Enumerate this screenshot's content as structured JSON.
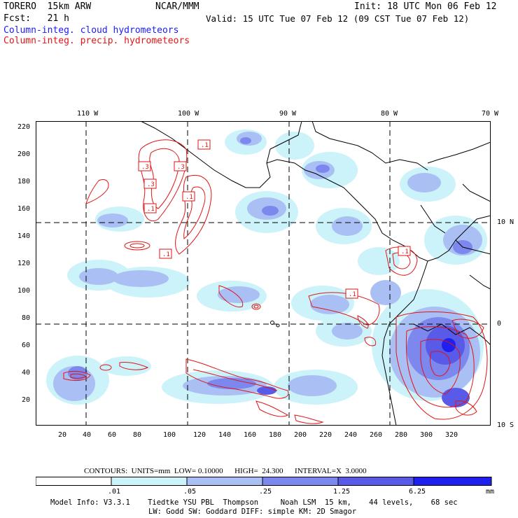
{
  "header": {
    "model": "TORERO  15km ARW",
    "center": "NCAR/MMM",
    "init": "Init: 18 UTC Mon 06 Feb 12",
    "fcst": "Fcst:   21 h",
    "valid": "Valid: 15 UTC Tue 07 Feb 12 (09 CST Tue 07 Feb 12)",
    "field_cloud": "Column-integ. cloud hydrometeors",
    "field_precip": "Column-integ. precip. hydrometeors"
  },
  "colors": {
    "cloud_label": "#1a1aff",
    "precip_label": "#e01515",
    "contour": "#e01515",
    "shade_1": "#ccf2fa",
    "shade_2": "#aac0f5",
    "shade_3": "#7c88ee",
    "shade_4": "#5a5ae8",
    "shade_5": "#2020ee"
  },
  "map": {
    "lon_labels": [
      "110 W",
      "100 W",
      "90 W",
      "80 W",
      "70 W"
    ],
    "lat_labels": [
      "10 N",
      "0",
      "10 S"
    ],
    "y_ticks": [
      "220",
      "200",
      "180",
      "160",
      "140",
      "120",
      "100",
      "80",
      "60",
      "40",
      "20"
    ],
    "x_ticks": [
      "20",
      "40",
      "60",
      "80",
      "100",
      "120",
      "140",
      "160",
      "180",
      "200",
      "220",
      "240",
      "260",
      "280",
      "300",
      "320"
    ],
    "contour_labels": [
      ".1",
      ".3",
      ".3",
      ".3",
      ".1",
      ".1",
      ".1",
      ".1",
      ".1",
      ".1"
    ],
    "icons": [
      "grid-lines",
      "coastline",
      "precip-contours",
      "cloud-shading"
    ]
  },
  "footer": {
    "contours": "CONTOURS:  UNITS=mm  LOW= 0.10000      HIGH=  24.300      INTERVAL=X  3.0000",
    "colorbar_labels": [
      ".01",
      ".05",
      ".25",
      "1.25",
      "6.25"
    ],
    "colorbar_units": "mm",
    "info1": "Model Info: V3.3.1    Tiedtke YSU PBL  Thompson     Noah LSM  15 km,    44 levels,    68 sec",
    "info2": "LW: Godd SW: Goddard DIFF: simple KM: 2D Smagor"
  }
}
